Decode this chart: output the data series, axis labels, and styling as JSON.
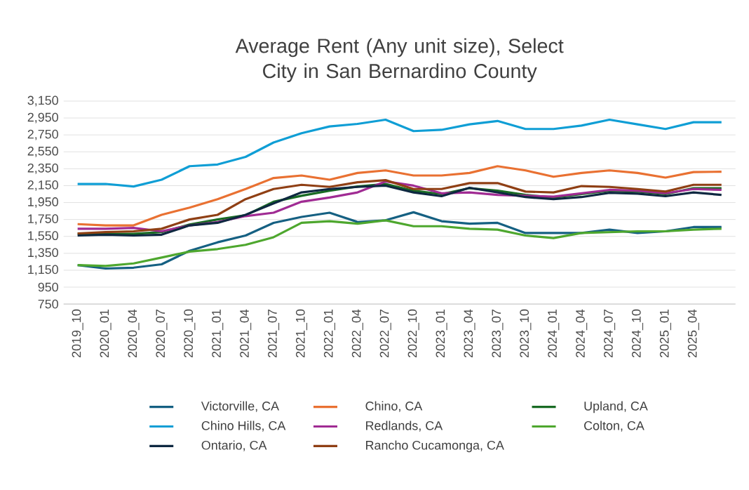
{
  "chart_data": {
    "type": "line",
    "title": "Average Rent (Any unit size), Select City in San Bernardino County",
    "categories": [
      "2019_10",
      "2020_01",
      "2020_04",
      "2020_07",
      "2020_10",
      "2021_01",
      "2021_04",
      "2021_07",
      "2021_10",
      "2022_01",
      "2022_04",
      "2022_07",
      "2022_10",
      "2023_01",
      "2023_04",
      "2023_07",
      "2023_10",
      "2024_01",
      "2024_04",
      "2024_07",
      "2024_10",
      "2025_01",
      "2025_04",
      null
    ],
    "series": [
      {
        "name": "Victorville, CA",
        "color": "#156082",
        "values": [
          1210,
          1170,
          1180,
          1220,
          1380,
          1480,
          1560,
          1710,
          1780,
          1830,
          1720,
          1740,
          1835,
          1730,
          1700,
          1710,
          1590,
          1590,
          1590,
          1630,
          1590,
          1610,
          1660,
          1660
        ]
      },
      {
        "name": "Chino, CA",
        "color": "#e97132",
        "values": [
          1695,
          1680,
          1680,
          1805,
          1890,
          1990,
          2110,
          2240,
          2270,
          2220,
          2300,
          2330,
          2270,
          2270,
          2300,
          2380,
          2330,
          2255,
          2300,
          2330,
          2300,
          2245,
          2310,
          2315
        ]
      },
      {
        "name": "Upland, CA",
        "color": "#196b24",
        "values": [
          1580,
          1580,
          1580,
          1600,
          1690,
          1750,
          1800,
          1960,
          2030,
          2090,
          2140,
          2170,
          2090,
          2050,
          2120,
          2090,
          2040,
          2010,
          2050,
          2090,
          2080,
          2050,
          2120,
          2120
        ]
      },
      {
        "name": "Chino Hills, CA",
        "color": "#0f9ed5",
        "values": [
          2170,
          2170,
          2140,
          2220,
          2380,
          2400,
          2490,
          2660,
          2770,
          2850,
          2880,
          2930,
          2795,
          2810,
          2875,
          2915,
          2820,
          2820,
          2860,
          2930,
          2875,
          2820,
          2900,
          2900
        ]
      },
      {
        "name": "Redlands, CA",
        "color": "#a02b93",
        "values": [
          1640,
          1640,
          1650,
          1610,
          1680,
          1720,
          1790,
          1830,
          1960,
          2010,
          2070,
          2200,
          2150,
          2060,
          2070,
          2040,
          2030,
          2020,
          2060,
          2100,
          2090,
          2060,
          2110,
          2100
        ]
      },
      {
        "name": "Colton, CA",
        "color": "#4ea72e",
        "values": [
          1210,
          1200,
          1230,
          1300,
          1370,
          1400,
          1450,
          1540,
          1710,
          1730,
          1700,
          1740,
          1670,
          1670,
          1640,
          1630,
          1560,
          1530,
          1590,
          1600,
          1610,
          1610,
          1630,
          1640
        ]
      },
      {
        "name": "Ontario, CA",
        "color": "#0e2841",
        "values": [
          1560,
          1570,
          1560,
          1570,
          1680,
          1710,
          1805,
          1940,
          2070,
          2110,
          2135,
          2150,
          2070,
          2025,
          2125,
          2070,
          2015,
          1990,
          2015,
          2065,
          2055,
          2025,
          2070,
          2040
        ]
      },
      {
        "name": "Rancho Cucamonga, CA",
        "color": "#8f3f14",
        "values": [
          1585,
          1600,
          1610,
          1640,
          1750,
          1805,
          1990,
          2110,
          2160,
          2135,
          2190,
          2215,
          2110,
          2110,
          2180,
          2180,
          2080,
          2070,
          2145,
          2135,
          2110,
          2080,
          2160,
          2160
        ]
      }
    ],
    "ylim": [
      750,
      3150
    ],
    "yticks": [
      750,
      950,
      {
        "value": 1150,
        "label": "1,150"
      },
      {
        "value": 1350,
        "label": "1,350"
      },
      {
        "value": 1550,
        "label": "1,550"
      },
      {
        "value": 1750,
        "label": "1,750"
      },
      {
        "value": 1950,
        "label": "1,950"
      },
      {
        "value": 2150,
        "label": "2,150"
      },
      {
        "value": 2350,
        "label": "2,350"
      },
      {
        "value": 2550,
        "label": "2,550"
      },
      {
        "value": 2750,
        "label": "2,750"
      },
      {
        "value": 2950,
        "label": "2,950"
      },
      {
        "value": 3150,
        "label": "3,150"
      }
    ],
    "grid": "y",
    "legend": "bottom"
  }
}
